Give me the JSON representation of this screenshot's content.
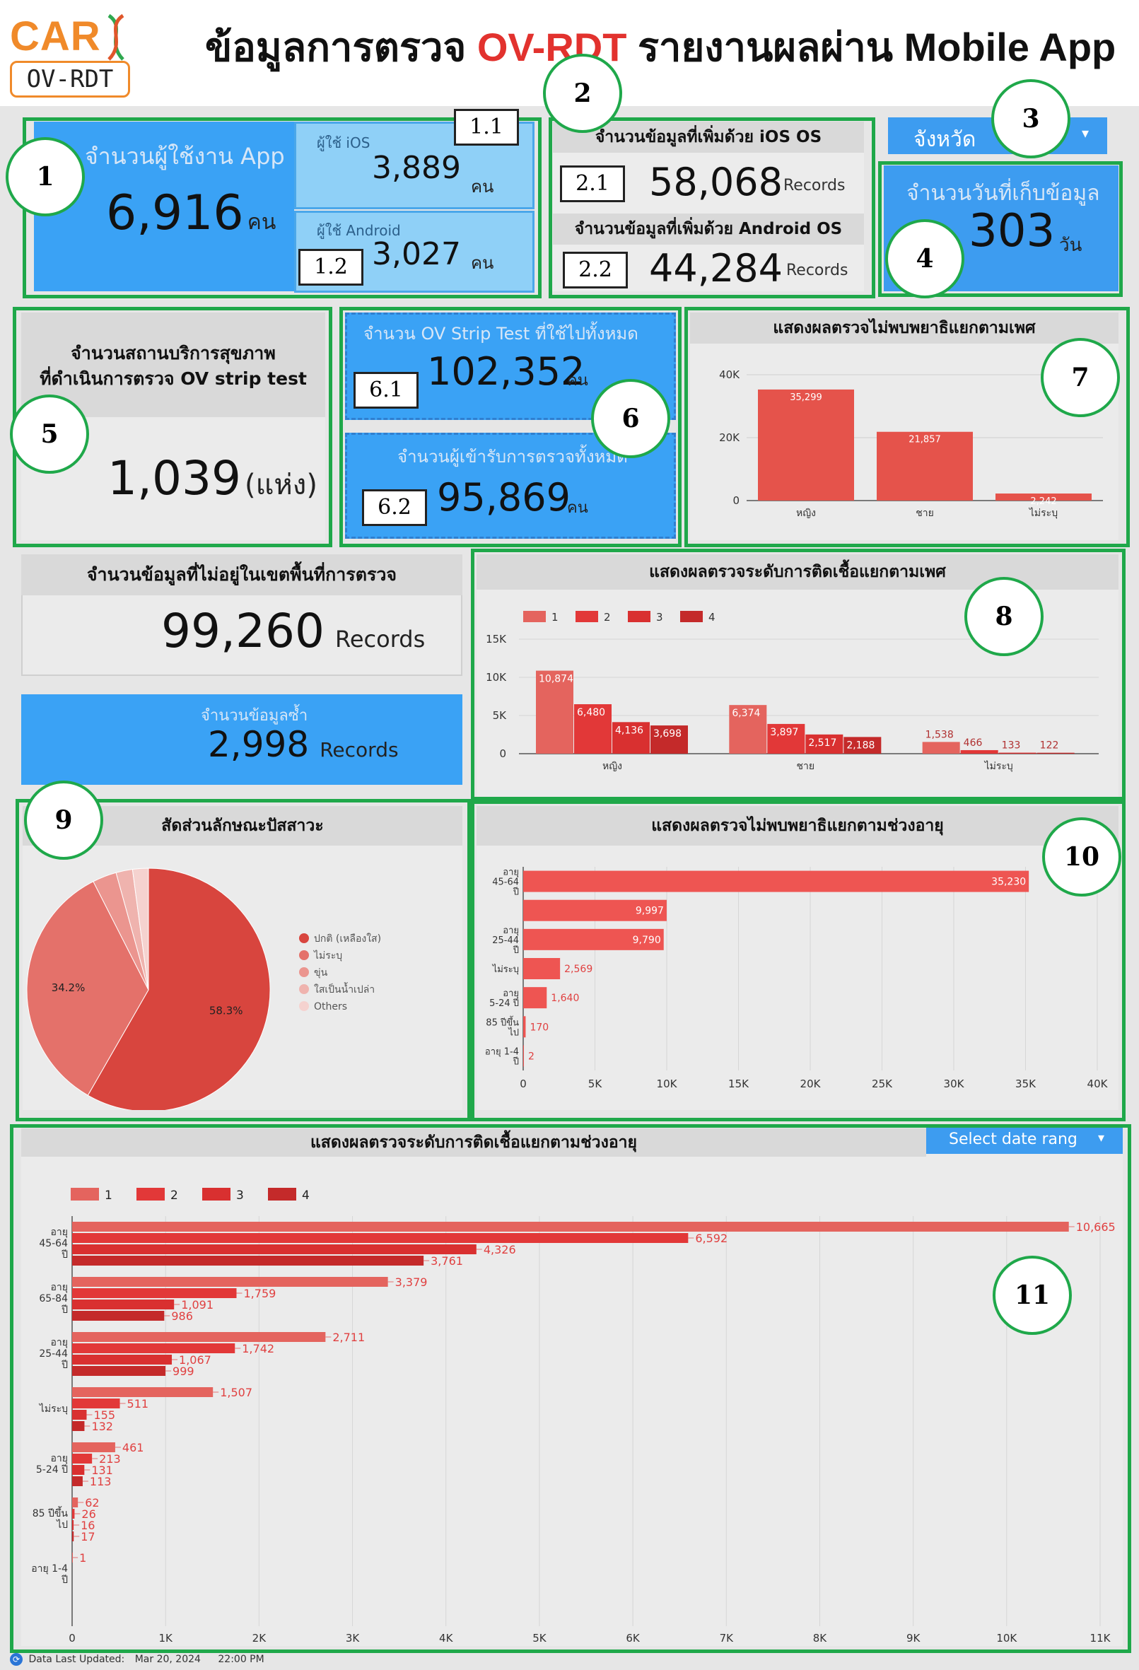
{
  "header": {
    "logo_top": "CAR",
    "logo_bottom": "OV-RDT",
    "title_pre": "ข้อมูลการตรวจ ",
    "title_red": "OV-RDT",
    "title_post": " รายงานผลผ่าน Mobile App"
  },
  "markers": {
    "m1": "1",
    "m1_1": "1.1",
    "m1_2": "1.2",
    "m2": "2",
    "m2_1": "2.1",
    "m2_2": "2.2",
    "m3": "3",
    "m4": "4",
    "m5": "5",
    "m6": "6",
    "m6_1": "6.1",
    "m6_2": "6.2",
    "m7": "7",
    "m8": "8",
    "m9": "9",
    "m10": "10",
    "m11": "11"
  },
  "users": {
    "label": "จำนวนผู้ใช้งาน App",
    "value": "6,916",
    "unit": "คน",
    "ios_label": "ผู้ใช้ iOS",
    "ios_value": "3,889",
    "ios_unit": "คน",
    "android_label": "ผู้ใช้ Android",
    "android_value": "3,027",
    "android_unit": "คน"
  },
  "records": {
    "ios_label": "จำนวนข้อมูลที่เพิ่มด้วย iOS OS",
    "ios_value": "58,068",
    "ios_unit": "Records",
    "android_label": "จำนวนข้อมูลที่เพิ่มด้วย Android OS",
    "android_value": "44,284",
    "android_unit": "Records"
  },
  "province_filter": {
    "label": "จังหวัด"
  },
  "days": {
    "label": "จำนวนวันที่เก็บข้อมูล",
    "value": "303",
    "unit": "วัน"
  },
  "facilities": {
    "label_line1": "จำนวนสถานบริการสุขภาพ",
    "label_line2": "ที่ดำเนินการตรวจ OV strip test",
    "value": "1,039",
    "unit": "(แห่ง)"
  },
  "strips": {
    "label": "จำนวน OV Strip Test ที่ใช้ไปทั้งหมด",
    "value": "102,352",
    "unit": "คน"
  },
  "persons": {
    "label": "จำนวนผู้เข้ารับการตรวจทั้งหมด",
    "value": "95,869",
    "unit": "คน"
  },
  "outside": {
    "label": "จำนวนข้อมูลที่ไม่อยู่ในเขตพื้นที่การตรวจ",
    "value": "99,260",
    "unit": "Records"
  },
  "duplicate": {
    "label": "จำนวนข้อมูลซ้ำ",
    "value": "2,998",
    "unit": "Records"
  },
  "date_picker": {
    "label": "Select date rang"
  },
  "footer": {
    "label": "Data Last Updated:",
    "date": "Mar 20, 2024",
    "time": "22:00 PM"
  },
  "chart_data": [
    {
      "id": "negative_by_sex",
      "type": "bar",
      "title": "แสดงผลตรวจไม่พบพยาธิแยกตามเพศ",
      "categories": [
        "หญิง",
        "ชาย",
        "ไม่ระบุ"
      ],
      "values": [
        35299,
        21857,
        2242
      ],
      "value_labels": [
        "35,299",
        "21,857",
        "2,242"
      ],
      "ylim": [
        0,
        40000
      ],
      "ytick_labels": [
        "0",
        "20K",
        "40K"
      ],
      "color": "#e5534b"
    },
    {
      "id": "infection_level_by_sex",
      "type": "bar",
      "title": "แสดงผลตรวจระดับการติดเชื้อแยกตามเพศ",
      "categories": [
        "หญิง",
        "ชาย",
        "ไม่ระบุ"
      ],
      "series": [
        {
          "name": "1",
          "values": [
            10874,
            6374,
            1538
          ],
          "labels": [
            "10,874",
            "6,374",
            "1,538"
          ],
          "color": "#e4645e"
        },
        {
          "name": "2",
          "values": [
            6480,
            3897,
            466
          ],
          "labels": [
            "6,480",
            "3,897",
            "466"
          ],
          "color": "#e23838"
        },
        {
          "name": "3",
          "values": [
            4136,
            2517,
            133
          ],
          "labels": [
            "4,136",
            "2,517",
            "133"
          ],
          "color": "#d93030"
        },
        {
          "name": "4",
          "values": [
            3698,
            2188,
            122
          ],
          "labels": [
            "3,698",
            "2,188",
            "122"
          ],
          "color": "#c42a2a"
        }
      ],
      "ylim": [
        0,
        15000
      ],
      "ytick_labels": [
        "0",
        "5K",
        "10K",
        "15K"
      ],
      "legend": "top-left"
    },
    {
      "id": "urine_characteristics",
      "type": "pie",
      "title": "สัดส่วนลักษณะปัสสาวะ",
      "labels": [
        "ปกติ (เหลืองใส)",
        "ไม่ระบุ",
        "ขุ่น",
        "ใสเป็นน้ำเปล่า",
        "Others"
      ],
      "values": [
        58.3,
        34.2,
        3.2,
        2.2,
        2.1
      ],
      "pct_labels": [
        "58.3%",
        "34.2%",
        "",
        "",
        ""
      ],
      "colors": [
        "#d8453e",
        "#e4716a",
        "#eb958f",
        "#efb3ae",
        "#f5d2cf"
      ],
      "legend": "right"
    },
    {
      "id": "negative_by_age",
      "type": "bar",
      "orientation": "horizontal",
      "title": "แสดงผลตรวจไม่พบพยาธิแยกตามช่วงอายุ",
      "categories": [
        [
          "อายุ",
          "45-64",
          "ปี"
        ],
        [
          "",
          "",
          ""
        ],
        [
          "อายุ",
          "25-44",
          "ปี"
        ],
        [
          "ไม่ระบุ"
        ],
        [
          "อายุ",
          "5-24 ปี"
        ],
        [
          "85 ปีขึ้น",
          "ไป"
        ],
        [
          "อายุ 1-4",
          "ปี"
        ]
      ],
      "values": [
        35230,
        9997,
        9790,
        2569,
        1640,
        170,
        2
      ],
      "value_labels": [
        "35,230",
        "9,997",
        "9,790",
        "2,569",
        "1,640",
        "170",
        "2"
      ],
      "xlim": [
        0,
        40000
      ],
      "xtick_labels": [
        "0",
        "5K",
        "10K",
        "15K",
        "20K",
        "25K",
        "30K",
        "35K",
        "40K"
      ],
      "color": "#ee5552"
    },
    {
      "id": "infection_level_by_age",
      "type": "bar",
      "orientation": "horizontal",
      "title": "แสดงผลตรวจระดับการติดเชื้อแยกตามช่วงอายุ",
      "categories": [
        [
          "อายุ",
          "45-64",
          "ปี"
        ],
        [
          "อายุ",
          "65-84",
          "ปี"
        ],
        [
          "อายุ",
          "25-44",
          "ปี"
        ],
        [
          "ไม่ระบุ"
        ],
        [
          "อายุ",
          "5-24 ปี"
        ],
        [
          "85 ปีขึ้น",
          "ไป"
        ],
        [
          "อายุ 1-4",
          "ปี"
        ]
      ],
      "series": [
        {
          "name": "1",
          "values": [
            10665,
            3379,
            2711,
            1507,
            461,
            62,
            1
          ],
          "labels": [
            "10,665",
            "3,379",
            "2,711",
            "1,507",
            "461",
            "62",
            "1"
          ],
          "color": "#e4645e"
        },
        {
          "name": "2",
          "values": [
            6592,
            1759,
            1742,
            511,
            213,
            26,
            0
          ],
          "labels": [
            "6,592",
            "1,759",
            "1,742",
            "511",
            "213",
            "26",
            ""
          ],
          "color": "#e23838"
        },
        {
          "name": "3",
          "values": [
            4326,
            1091,
            1067,
            155,
            131,
            16,
            0
          ],
          "labels": [
            "4,326",
            "1,091",
            "1,067",
            "155",
            "131",
            "16",
            ""
          ],
          "color": "#d93030"
        },
        {
          "name": "4",
          "values": [
            3761,
            986,
            999,
            132,
            113,
            17,
            0
          ],
          "labels": [
            "3,761",
            "986",
            "999",
            "132",
            "113",
            "17",
            ""
          ],
          "color": "#c42a2a"
        }
      ],
      "xlim": [
        0,
        11000
      ],
      "xtick_labels": [
        "0",
        "1K",
        "2K",
        "3K",
        "4K",
        "5K",
        "6K",
        "7K",
        "8K",
        "9K",
        "10K",
        "11K"
      ],
      "legend": "top-left"
    }
  ]
}
